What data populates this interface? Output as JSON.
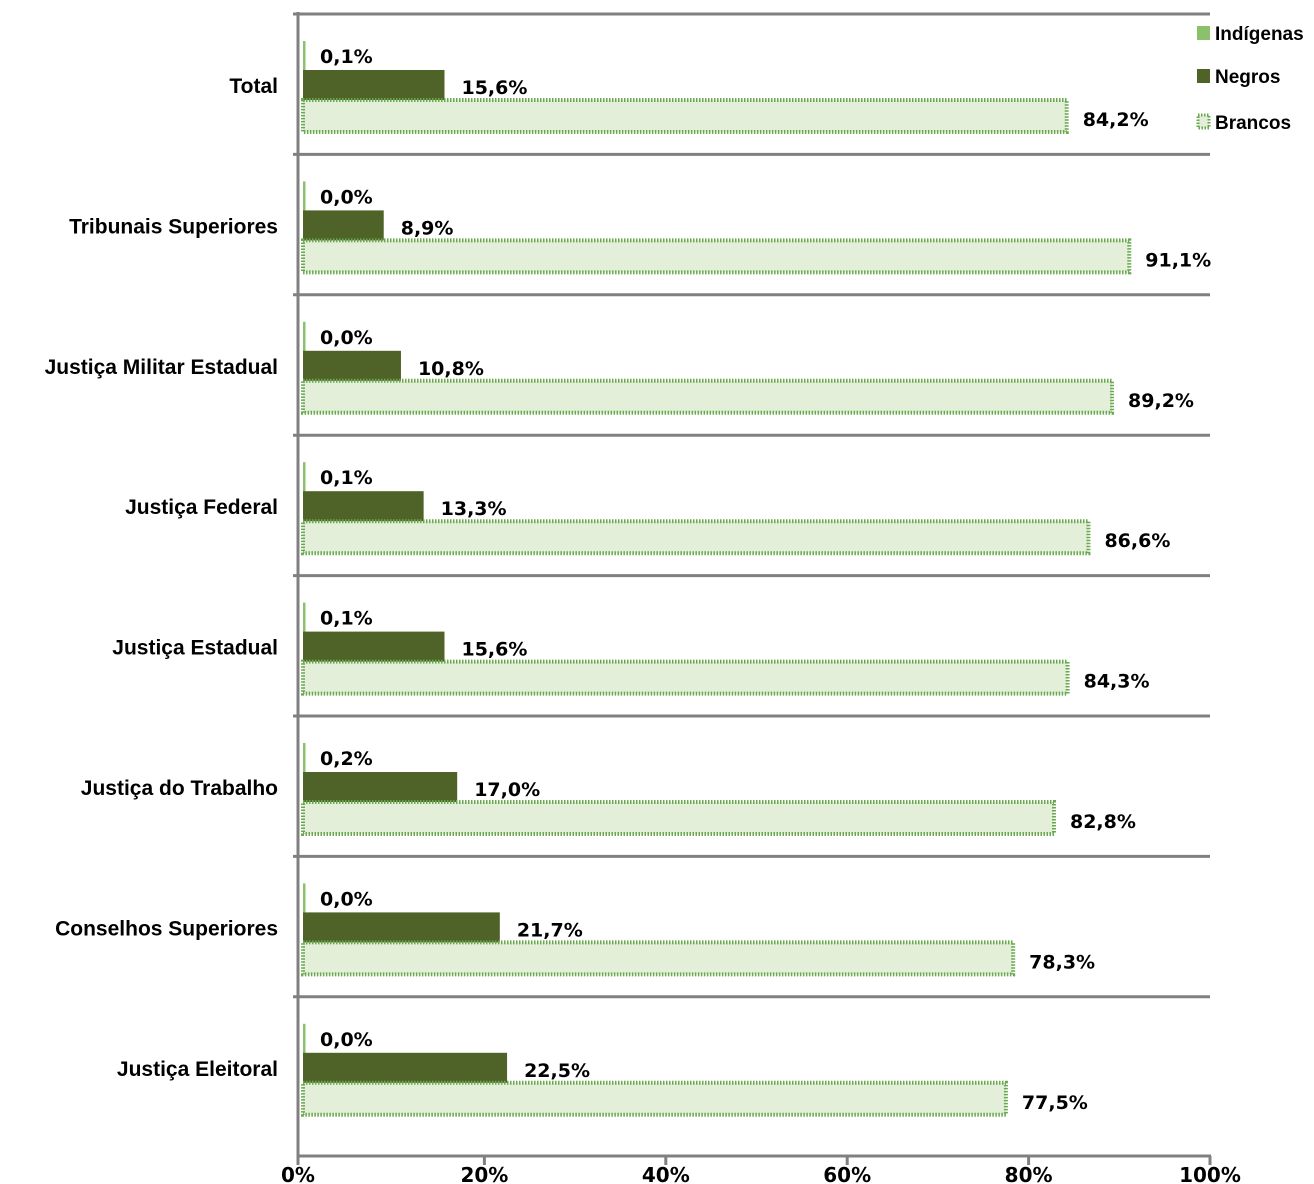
{
  "chart_data": {
    "type": "bar",
    "orientation": "horizontal",
    "categories": [
      "Total",
      "Tribunais Superiores",
      "Justiça Militar Estadual",
      "Justiça Federal",
      "Justiça Estadual",
      "Justiça do Trabalho",
      "Conselhos Superiores",
      "Justiça Eleitoral"
    ],
    "series": [
      {
        "name": "Indígenas",
        "color": "#8cc16b",
        "values": [
          0.1,
          0.0,
          0.0,
          0.1,
          0.1,
          0.2,
          0.0,
          0.0
        ],
        "labels": [
          "0,1%",
          "0,0%",
          "0,0%",
          "0,1%",
          "0,1%",
          "0,2%",
          "0,0%",
          "0,0%"
        ]
      },
      {
        "name": "Negros",
        "color": "#4f6228",
        "values": [
          15.6,
          8.9,
          10.8,
          13.3,
          15.6,
          17.0,
          21.7,
          22.5
        ],
        "labels": [
          "15,6%",
          "8,9%",
          "10,8%",
          "13,3%",
          "15,6%",
          "17,0%",
          "21,7%",
          "22,5%"
        ]
      },
      {
        "name": "Brancos",
        "color": "#e3efd9",
        "border_color": "#6aa84f",
        "border_style": "dotted",
        "values": [
          84.2,
          91.1,
          89.2,
          86.6,
          84.3,
          82.8,
          78.3,
          77.5
        ],
        "labels": [
          "84,2%",
          "91,1%",
          "89,2%",
          "86,6%",
          "84,3%",
          "82,8%",
          "78,3%",
          "77,5%"
        ]
      }
    ],
    "xlim": [
      0,
      100
    ],
    "x_ticks": [
      0,
      20,
      40,
      60,
      80,
      100
    ],
    "x_tick_labels": [
      "0%",
      "20%",
      "40%",
      "60%",
      "80%",
      "100%"
    ],
    "gridlines": "horizontal separators between categories",
    "legend": "top-right",
    "legend_labels": [
      "Indígenas",
      "Negros",
      "Brancos"
    ]
  }
}
